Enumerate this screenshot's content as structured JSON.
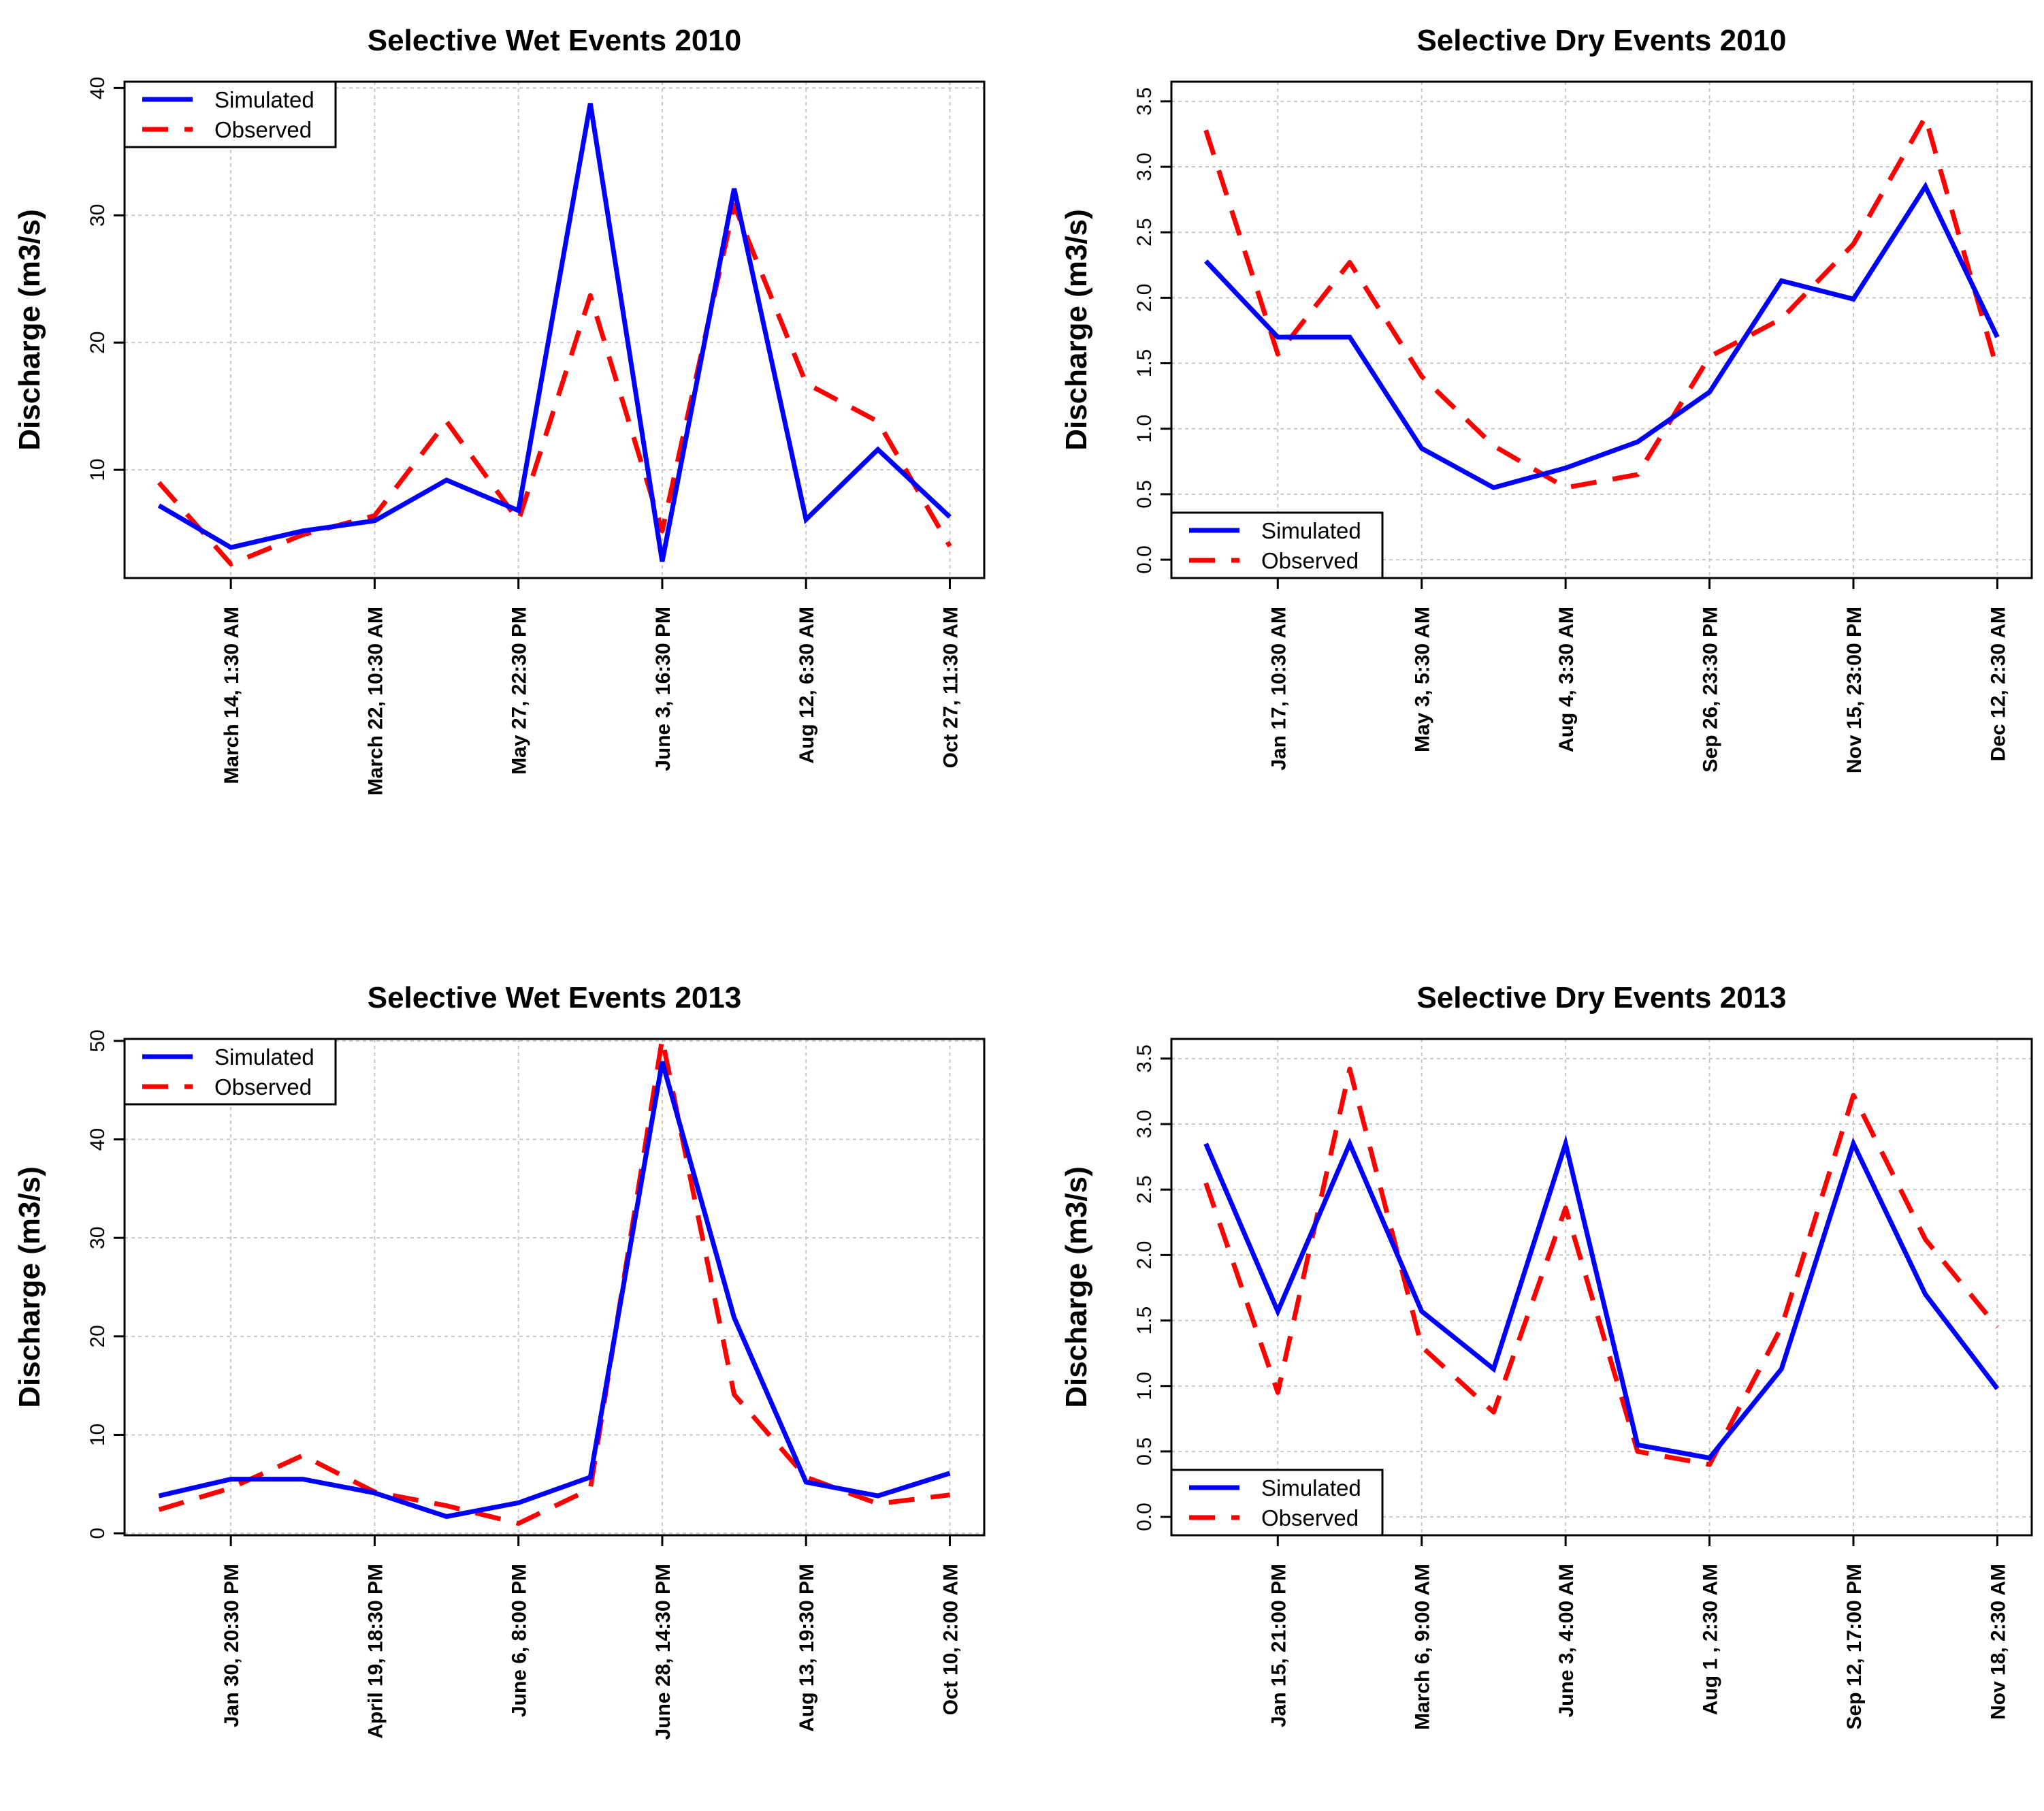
{
  "colors": {
    "simulated": "#0000ff",
    "observed": "#ff0000",
    "grid": "#c8c8c8"
  },
  "chart_data": [
    {
      "type": "line",
      "title": "Selective Wet Events 2010",
      "ylabel": "Discharge (m3/s)",
      "xlabel": "",
      "ylim": [
        1.5,
        40.5
      ],
      "yticks": [
        10,
        20,
        30,
        40
      ],
      "n_points": 12,
      "xtick_positions": [
        2,
        4,
        6,
        8,
        10,
        12
      ],
      "xtick_labels": [
        "March 14, 1:30 AM",
        "March 22, 10:30 AM",
        "May 27, 22:30 PM",
        "June 3, 16:30 PM",
        "Aug 12, 6:30 AM",
        "Oct 27, 11:30 AM"
      ],
      "legend_position": "top-left",
      "grid": true,
      "series": [
        {
          "name": "Simulated",
          "style": "solid",
          "values": [
            7.2,
            3.9,
            5.2,
            6.0,
            9.2,
            6.8,
            38.8,
            2.8,
            32.1,
            6.1,
            11.6,
            6.3
          ]
        },
        {
          "name": "Observed",
          "style": "dashed",
          "values": [
            9.0,
            2.6,
            4.9,
            6.4,
            13.8,
            6.0,
            23.7,
            5.2,
            30.8,
            16.8,
            13.8,
            4.0
          ]
        }
      ]
    },
    {
      "type": "line",
      "title": "Selective Dry Events 2010",
      "ylabel": "Discharge (m3/s)",
      "xlabel": "",
      "ylim": [
        -0.14,
        3.65
      ],
      "yticks": [
        0.0,
        0.5,
        1.0,
        1.5,
        2.0,
        2.5,
        3.0,
        3.5
      ],
      "n_points": 12,
      "xtick_positions": [
        2,
        4,
        6,
        8,
        10,
        12
      ],
      "xtick_labels": [
        "Jan 17, 10:30 AM",
        "May 3, 5:30 AM",
        "Aug 4, 3:30 AM",
        "Sep 26, 23:30 PM",
        "Nov 15, 23:00 PM",
        "Dec 12, 2:30 AM"
      ],
      "legend_position": "bottom-left",
      "grid": true,
      "series": [
        {
          "name": "Simulated",
          "style": "solid",
          "values": [
            2.28,
            1.7,
            1.7,
            0.85,
            0.55,
            0.7,
            0.9,
            1.28,
            2.13,
            1.99,
            2.85,
            1.7
          ]
        },
        {
          "name": "Observed",
          "style": "dashed",
          "values": [
            3.28,
            1.57,
            2.27,
            1.4,
            0.87,
            0.55,
            0.65,
            1.55,
            1.84,
            2.41,
            3.38,
            1.45
          ]
        }
      ]
    },
    {
      "type": "line",
      "title": "Selective Wet Events 2013",
      "ylabel": "Discharge (m3/s)",
      "xlabel": "",
      "ylim": [
        -0.2,
        50.2
      ],
      "yticks": [
        0,
        10,
        20,
        30,
        40,
        50
      ],
      "n_points": 12,
      "xtick_positions": [
        2,
        4,
        6,
        8,
        10,
        12
      ],
      "xtick_labels": [
        "Jan 30, 20:30 PM",
        "April 19, 18:30 PM",
        "June 6, 8:00 PM",
        "June 28, 14:30 PM",
        "Aug 13, 19:30 PM",
        "Oct 10, 2:00 AM"
      ],
      "legend_position": "top-left",
      "grid": true,
      "series": [
        {
          "name": "Simulated",
          "style": "solid",
          "values": [
            3.8,
            5.5,
            5.5,
            4.1,
            1.7,
            3.1,
            5.7,
            47.9,
            21.9,
            5.2,
            3.8,
            6.1
          ]
        },
        {
          "name": "Observed",
          "style": "dashed",
          "values": [
            2.4,
            4.6,
            7.9,
            4.2,
            2.8,
            1.0,
            4.5,
            50.2,
            14.1,
            5.7,
            3.0,
            3.9
          ]
        }
      ]
    },
    {
      "type": "line",
      "title": "Selective Dry Events 2013",
      "ylabel": "Discharge (m3/s)",
      "xlabel": "",
      "ylim": [
        -0.14,
        3.65
      ],
      "yticks": [
        0.0,
        0.5,
        1.0,
        1.5,
        2.0,
        2.5,
        3.0,
        3.5
      ],
      "n_points": 12,
      "xtick_positions": [
        2,
        4,
        6,
        8,
        10,
        12
      ],
      "xtick_labels": [
        "Jan 15, 21:00 PM",
        "March 6, 9:00 AM",
        "June 3, 4:00 AM",
        "Aug 1 , 2:30 AM",
        "Sep 12, 17:00 PM",
        "Nov 18, 2:30 AM"
      ],
      "legend_position": "bottom-left",
      "grid": true,
      "series": [
        {
          "name": "Simulated",
          "style": "solid",
          "values": [
            2.85,
            1.57,
            2.85,
            1.57,
            1.13,
            2.85,
            0.55,
            0.45,
            1.13,
            2.85,
            1.7,
            0.98
          ]
        },
        {
          "name": "Observed",
          "style": "dashed",
          "values": [
            2.55,
            0.95,
            3.42,
            1.3,
            0.8,
            2.36,
            0.5,
            0.4,
            1.45,
            3.22,
            2.12,
            1.45
          ]
        }
      ]
    }
  ]
}
